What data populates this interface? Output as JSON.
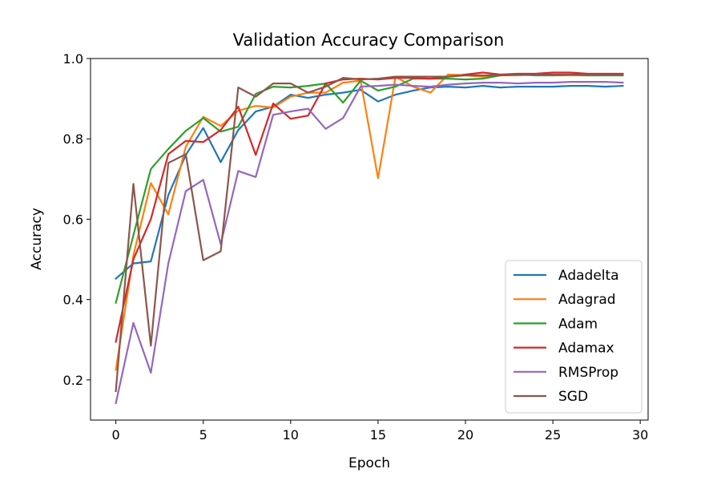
{
  "chart_data": {
    "type": "line",
    "title": "Validation Accuracy Comparison",
    "xlabel": "Epoch",
    "ylabel": "Accuracy",
    "xlim": [
      -1.45,
      30.45
    ],
    "ylim": [
      0.1,
      1.0
    ],
    "xticks": [
      0,
      5,
      10,
      15,
      20,
      25,
      30
    ],
    "yticks": [
      0.2,
      0.4,
      0.6,
      0.8,
      1.0
    ],
    "ytick_labels": [
      "0.2",
      "0.4",
      "0.6",
      "0.8",
      "1.0"
    ],
    "grid": false,
    "legend_position": "lower-right",
    "x": [
      0,
      1,
      2,
      3,
      4,
      5,
      6,
      7,
      8,
      9,
      10,
      11,
      12,
      13,
      14,
      15,
      16,
      17,
      18,
      19,
      20,
      21,
      22,
      23,
      24,
      25,
      26,
      27,
      28,
      29
    ],
    "series": [
      {
        "name": "Adadelta",
        "color": "#1f77b4",
        "values": [
          0.452,
          0.49,
          0.495,
          0.66,
          0.76,
          0.827,
          0.742,
          0.822,
          0.868,
          0.88,
          0.91,
          0.902,
          0.91,
          0.915,
          0.922,
          0.893,
          0.91,
          0.92,
          0.928,
          0.93,
          0.928,
          0.932,
          0.928,
          0.93,
          0.93,
          0.93,
          0.932,
          0.932,
          0.93,
          0.932
        ]
      },
      {
        "name": "Adagrad",
        "color": "#ff7f0e",
        "values": [
          0.225,
          0.51,
          0.69,
          0.612,
          0.78,
          0.855,
          0.832,
          0.87,
          0.882,
          0.878,
          0.905,
          0.915,
          0.915,
          0.94,
          0.945,
          0.702,
          0.955,
          0.93,
          0.915,
          0.96,
          0.958,
          0.955,
          0.958,
          0.958,
          0.96,
          0.958,
          0.958,
          0.958,
          0.958,
          0.958
        ]
      },
      {
        "name": "Adam",
        "color": "#2ca02c",
        "values": [
          0.392,
          0.56,
          0.725,
          0.775,
          0.82,
          0.852,
          0.818,
          0.83,
          0.912,
          0.93,
          0.928,
          0.932,
          0.938,
          0.89,
          0.945,
          0.92,
          0.93,
          0.95,
          0.95,
          0.95,
          0.948,
          0.95,
          0.958,
          0.96,
          0.958,
          0.958,
          0.96,
          0.958,
          0.958,
          0.958
        ]
      },
      {
        "name": "Adamax",
        "color": "#d62728",
        "values": [
          0.295,
          0.5,
          0.6,
          0.762,
          0.795,
          0.792,
          0.822,
          0.88,
          0.76,
          0.888,
          0.85,
          0.858,
          0.938,
          0.948,
          0.95,
          0.948,
          0.952,
          0.952,
          0.95,
          0.955,
          0.96,
          0.965,
          0.96,
          0.962,
          0.962,
          0.965,
          0.965,
          0.962,
          0.962,
          0.962
        ]
      },
      {
        "name": "RMSProp",
        "color": "#9467bd",
        "values": [
          0.142,
          0.342,
          0.218,
          0.49,
          0.67,
          0.698,
          0.538,
          0.72,
          0.705,
          0.86,
          0.868,
          0.875,
          0.825,
          0.852,
          0.93,
          0.932,
          0.935,
          0.932,
          0.93,
          0.935,
          0.938,
          0.94,
          0.94,
          0.938,
          0.94,
          0.94,
          0.942,
          0.942,
          0.942,
          0.94
        ]
      },
      {
        "name": "SGD",
        "color": "#8c564b",
        "values": [
          0.172,
          0.688,
          0.285,
          0.74,
          0.762,
          0.498,
          0.52,
          0.928,
          0.905,
          0.938,
          0.938,
          0.915,
          0.93,
          0.952,
          0.948,
          0.95,
          0.955,
          0.955,
          0.955,
          0.955,
          0.958,
          0.958,
          0.958,
          0.96,
          0.96,
          0.96,
          0.96,
          0.96,
          0.96,
          0.96
        ]
      }
    ]
  }
}
